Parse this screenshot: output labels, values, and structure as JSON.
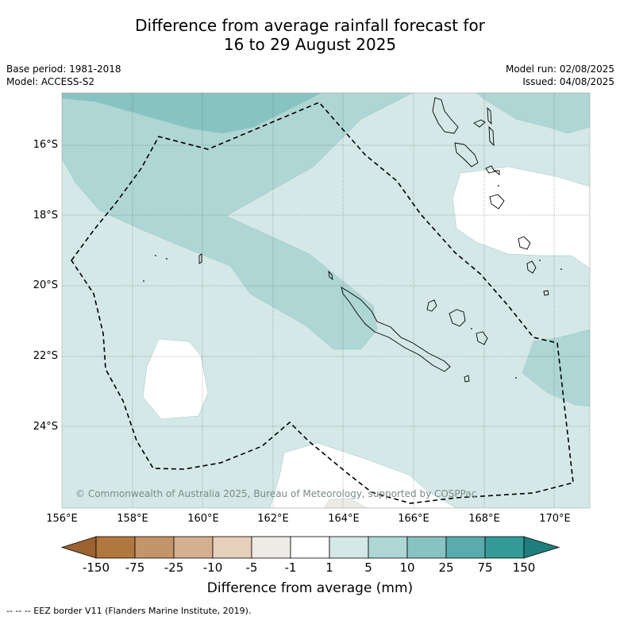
{
  "title": {
    "line1": "Difference from average rainfall forecast for",
    "line2": "16 to 29 August 2025"
  },
  "meta": {
    "base_period": "Base period: 1981-2018",
    "model": "Model: ACCESS-S2",
    "model_run": "Model run: 02/08/2025",
    "issued": "Issued: 04/08/2025"
  },
  "map": {
    "latitudes": [
      "16°S",
      "18°S",
      "20°S",
      "22°S",
      "24°S"
    ],
    "longitudes": [
      "156°E",
      "158°E",
      "160°E",
      "162°E",
      "164°E",
      "166°E",
      "168°E",
      "170°E"
    ],
    "copyright": "© Commonwealth of Australia 2025, Bureau of Meteorology, supported by COSPPac",
    "colors": {
      "ocean_base": "#d4e9e7",
      "band_5_10": "#aed6d5",
      "band_10_25": "#87c3c1",
      "near_normal": "#ffffff",
      "dry_light": "#eeebe7"
    }
  },
  "colorbar": {
    "labels": [
      "-150",
      "-75",
      "-25",
      "-10",
      "-5",
      "-1",
      "1",
      "5",
      "10",
      "25",
      "75",
      "150"
    ],
    "colors": [
      "#9c6230",
      "#b0773e",
      "#c4956a",
      "#d4b091",
      "#e6cfbb",
      "#eeebe7",
      "#ffffff",
      "#d4e9e7",
      "#aed6d5",
      "#87c3c1",
      "#5aabab",
      "#349a96",
      "#1f7e7b"
    ],
    "title": "Difference from average (mm)"
  },
  "footer": "--  --  -- EEZ border V11 (Flanders Marine Institute, 2019)."
}
